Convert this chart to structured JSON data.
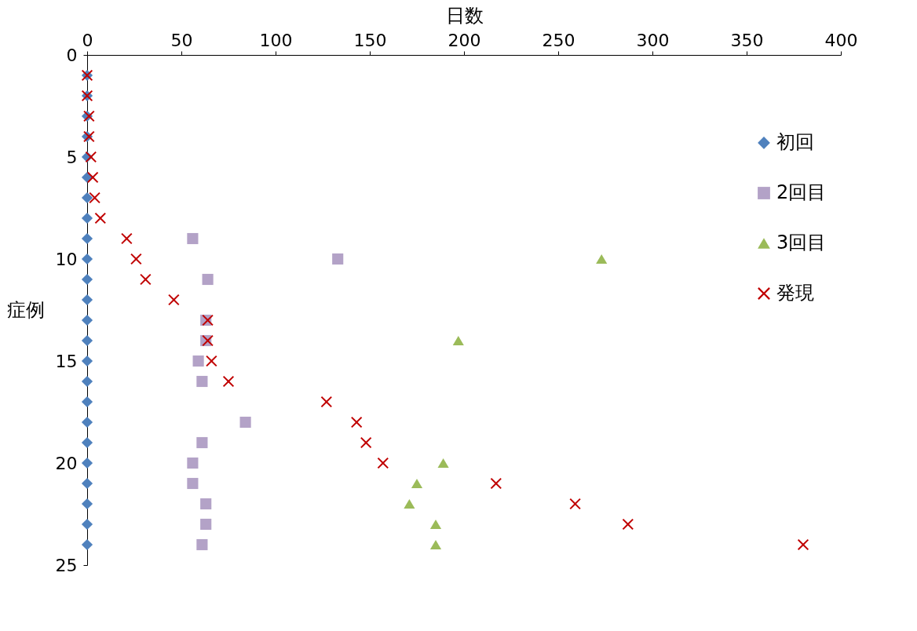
{
  "chart_data": {
    "type": "scatter",
    "xlabel": "日数",
    "ylabel": "症例",
    "xlim": [
      0,
      400
    ],
    "xticks": [
      0,
      50,
      100,
      150,
      200,
      250,
      300,
      350,
      400
    ],
    "ylim": [
      25,
      0
    ],
    "yticks": [
      0,
      5,
      10,
      15,
      20,
      25
    ],
    "grid": false,
    "legend": "right",
    "series": [
      {
        "name": "初回",
        "color": "#4f81bd",
        "marker": "diamond",
        "x": [
          0,
          0,
          0,
          0,
          0,
          0,
          0,
          0,
          0,
          0,
          0,
          0,
          0,
          0,
          0,
          0,
          0,
          0,
          0,
          0,
          0,
          0,
          0,
          0
        ],
        "values": [
          1,
          2,
          3,
          4,
          5,
          6,
          7,
          8,
          9,
          10,
          11,
          12,
          13,
          14,
          15,
          16,
          17,
          18,
          19,
          20,
          21,
          22,
          23,
          24
        ]
      },
      {
        "name": "2回目",
        "color": "#b3a2c7",
        "marker": "square",
        "x": [
          56,
          133,
          64,
          63,
          63,
          59,
          61,
          84,
          61,
          56,
          56,
          63,
          63,
          61
        ],
        "values": [
          9,
          10,
          11,
          13,
          14,
          15,
          16,
          18,
          19,
          20,
          21,
          22,
          23,
          24
        ]
      },
      {
        "name": "3回目",
        "color": "#9bbb59",
        "marker": "triangle",
        "x": [
          273,
          197,
          189,
          175,
          171,
          185,
          185
        ],
        "values": [
          10,
          14,
          20,
          21,
          22,
          23,
          24
        ]
      },
      {
        "name": "発現",
        "color": "#c00000",
        "marker": "cross",
        "x": [
          0,
          0,
          1,
          1,
          2,
          3,
          4,
          7,
          21,
          26,
          31,
          46,
          64,
          64,
          66,
          75,
          127,
          143,
          148,
          157,
          217,
          259,
          287,
          380
        ],
        "values": [
          1,
          2,
          3,
          4,
          5,
          6,
          7,
          8,
          9,
          10,
          11,
          12,
          13,
          14,
          15,
          16,
          17,
          18,
          19,
          20,
          21,
          22,
          23,
          24
        ]
      }
    ]
  }
}
